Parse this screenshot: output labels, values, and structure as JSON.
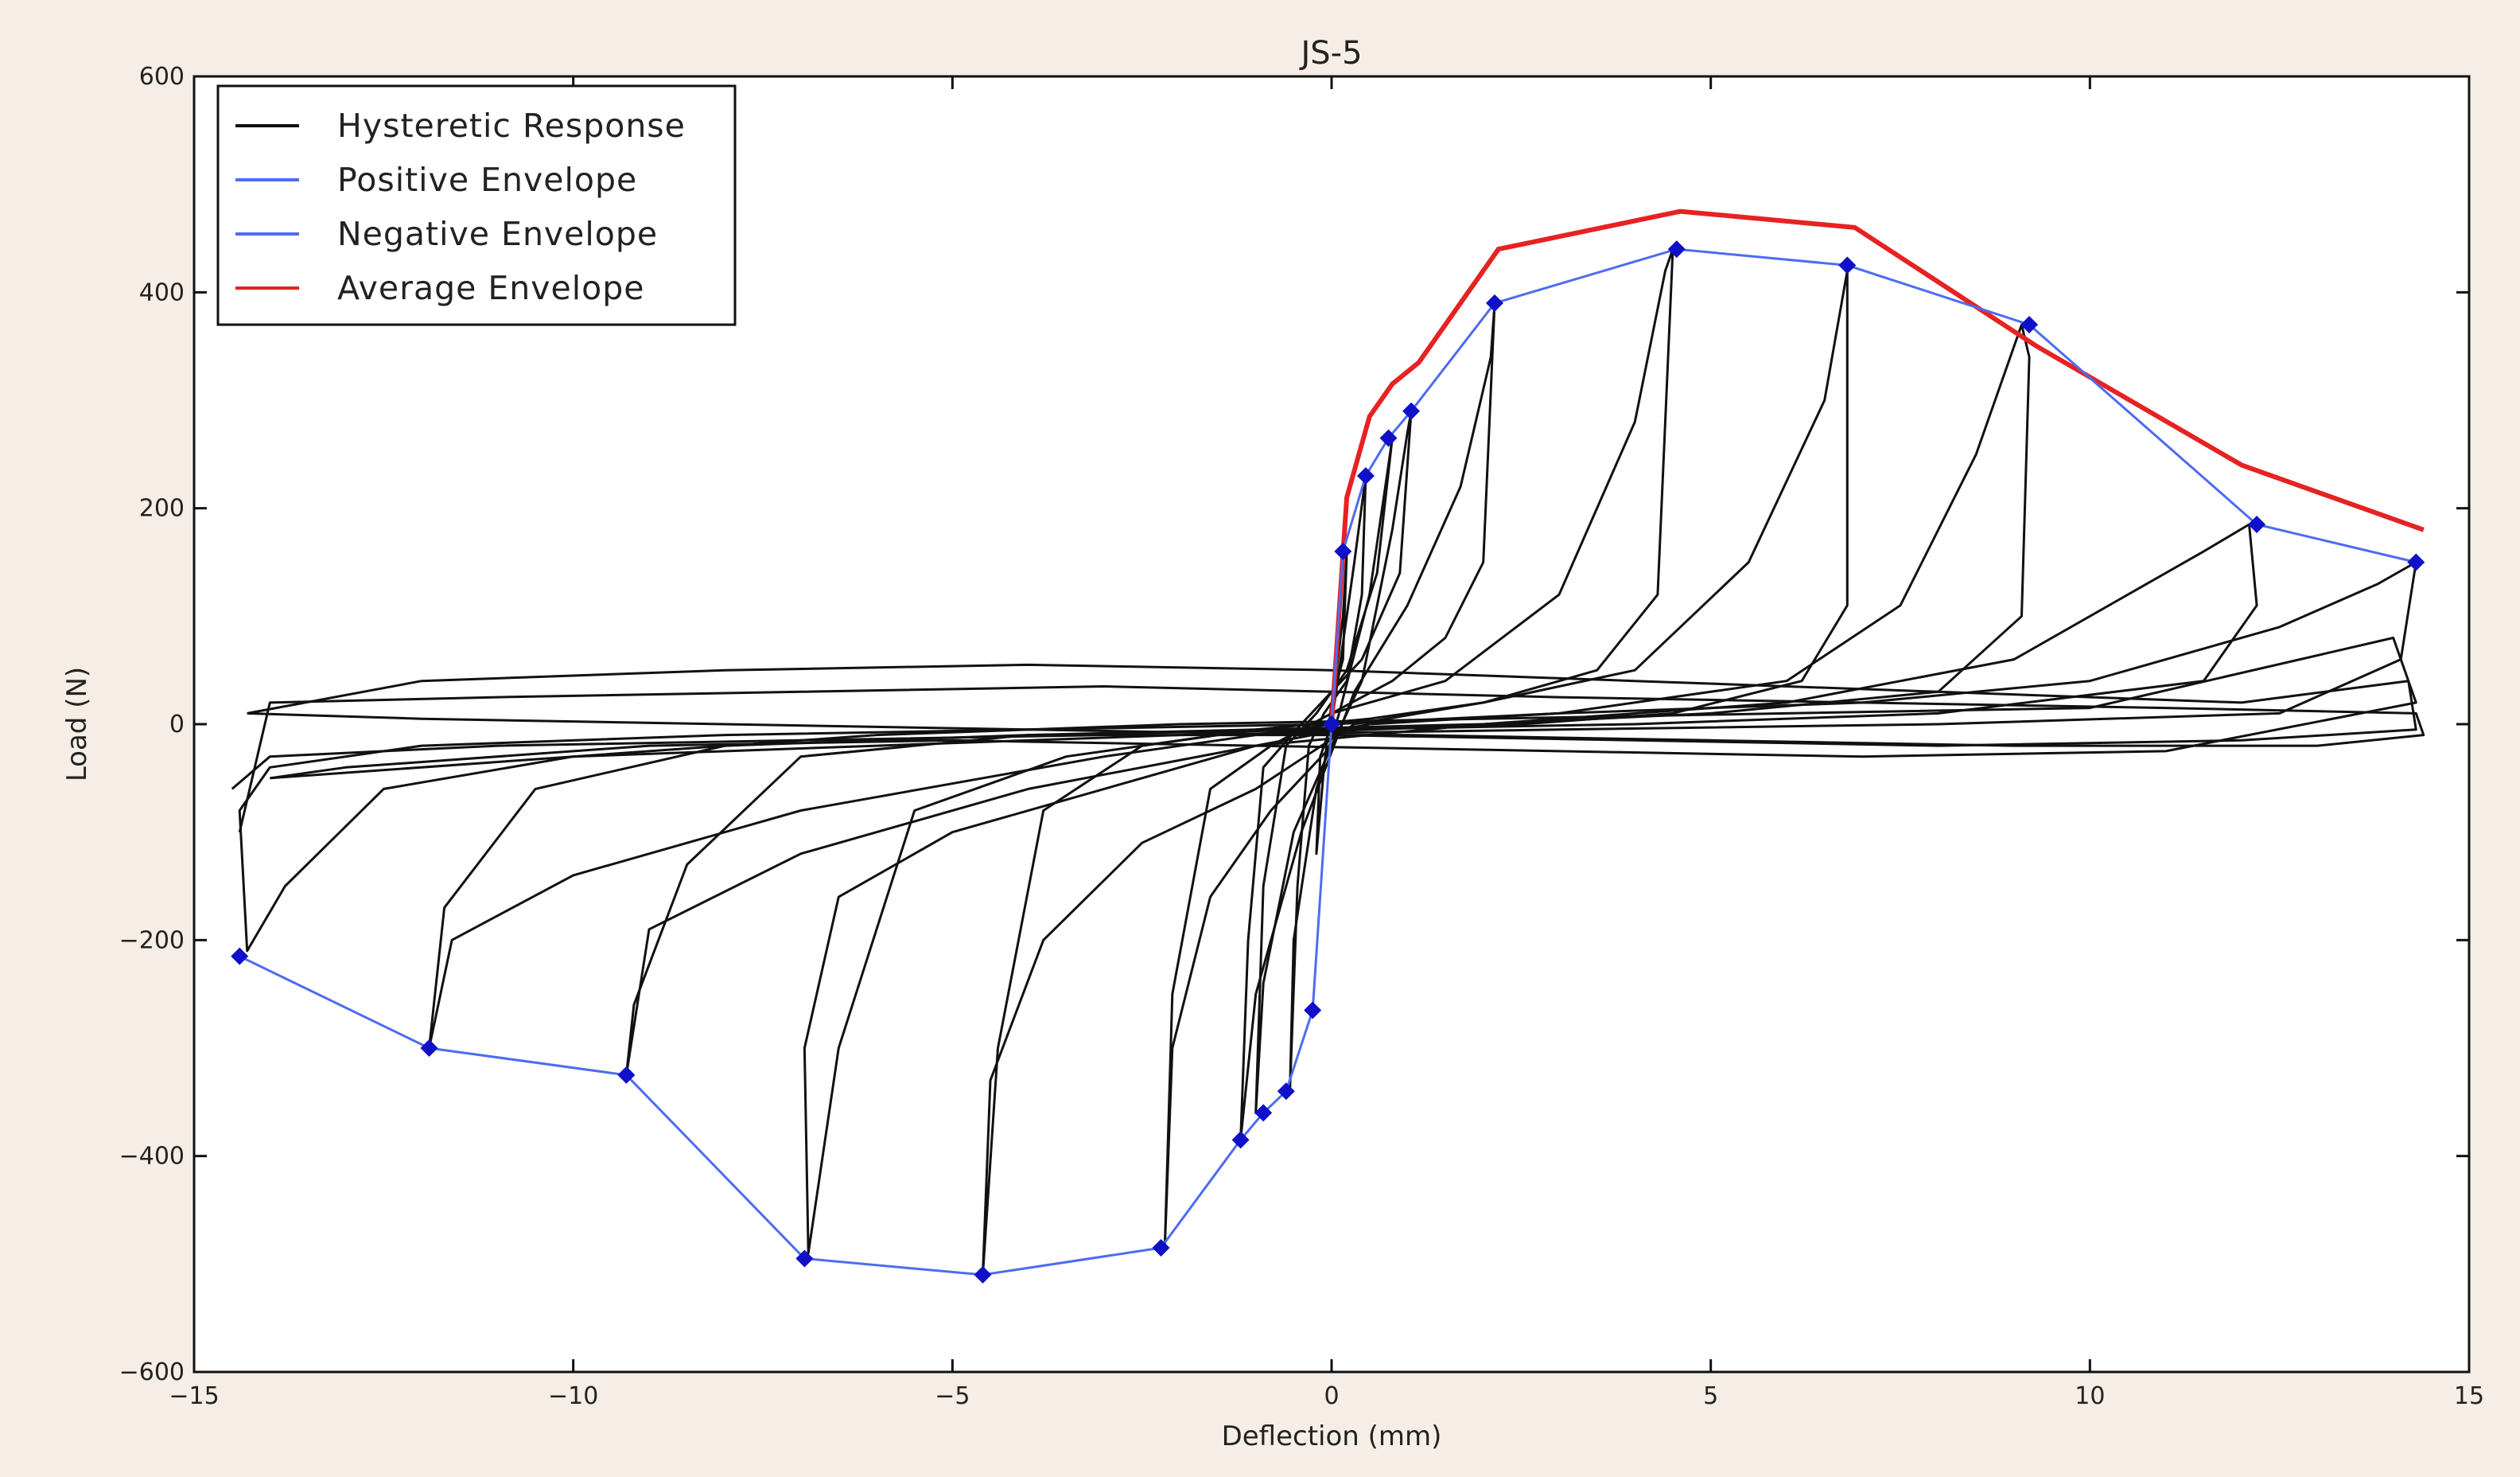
{
  "chart_data": {
    "type": "line",
    "title": "JS-5",
    "xlabel": "Deflection (mm)",
    "ylabel": "Load (N)",
    "xlim": [
      -15,
      15
    ],
    "ylim": [
      -600,
      600
    ],
    "xticks": [
      -15,
      -10,
      -5,
      0,
      5,
      10,
      15
    ],
    "yticks": [
      -600,
      -400,
      -200,
      0,
      200,
      400,
      600
    ],
    "xtick_labels": [
      "−15",
      "−10",
      "−5",
      "0",
      "5",
      "10",
      "15"
    ],
    "ytick_labels": [
      "−600",
      "−400",
      "−200",
      "0",
      "200",
      "400",
      "600"
    ],
    "grid": false,
    "legend_position": "top-left",
    "colors": {
      "hysteretic": "#111111",
      "positive": "#4d6cf0",
      "negative": "#4d6cf0",
      "average": "#e62222",
      "marker": "#1010c8"
    },
    "series": [
      {
        "name": "Hysteretic Response",
        "role": "hysteretic",
        "loops": [
          {
            "x": [
              0,
              0.05,
              0.15,
              0.2,
              0.15,
              0,
              -0.1,
              -0.2,
              -0.15,
              0
            ],
            "y": [
              0,
              40,
              100,
              160,
              60,
              20,
              -40,
              -120,
              -30,
              0
            ]
          },
          {
            "x": [
              0,
              0.1,
              0.3,
              0.45,
              0.4,
              0.2,
              -0.1,
              -0.3,
              -0.45,
              -0.55,
              -0.5,
              -0.2,
              0.1
            ],
            "y": [
              0,
              50,
              150,
              230,
              120,
              40,
              10,
              -20,
              -150,
              -340,
              -200,
              -60,
              10
            ]
          },
          {
            "x": [
              0.1,
              0.5,
              0.75,
              0.8,
              0.6,
              0.2,
              -0.2,
              -0.6,
              -0.9,
              -1.0,
              -0.9,
              -0.5,
              0,
              0.4
            ],
            "y": [
              10,
              120,
              240,
              265,
              140,
              50,
              10,
              -20,
              -150,
              -360,
              -240,
              -100,
              -20,
              40
            ]
          },
          {
            "x": [
              0.4,
              0.8,
              1.0,
              1.05,
              0.9,
              0.4,
              -0.4,
              -0.9,
              -1.1,
              -1.2,
              -1.0,
              -0.4,
              0.3
            ],
            "y": [
              40,
              180,
              270,
              290,
              140,
              60,
              0,
              -40,
              -200,
              -385,
              -250,
              -100,
              30
            ]
          },
          {
            "x": [
              0.3,
              1.0,
              1.7,
              2.1,
              2.15,
              2.0,
              1.5,
              0.8,
              0,
              -0.8,
              -1.6,
              -2.1,
              -2.2,
              -2.1,
              -1.6,
              -0.8,
              0
            ],
            "y": [
              30,
              110,
              220,
              340,
              390,
              150,
              80,
              40,
              10,
              -20,
              -60,
              -250,
              -485,
              -300,
              -160,
              -80,
              -20
            ]
          },
          {
            "x": [
              0,
              1.5,
              3.0,
              4.0,
              4.4,
              4.5,
              4.3,
              3.5,
              2.0,
              0.5,
              -1.0,
              -2.5,
              -3.8,
              -4.4,
              -4.6,
              -4.5,
              -3.8,
              -2.5,
              -1.0,
              0.3
            ],
            "y": [
              10,
              40,
              120,
              280,
              420,
              440,
              120,
              50,
              20,
              5,
              -5,
              -20,
              -80,
              -300,
              -510,
              -330,
              -200,
              -110,
              -60,
              0
            ]
          },
          {
            "x": [
              0.3,
              2.0,
              4.0,
              5.5,
              6.5,
              6.8,
              6.8,
              6.2,
              4.5,
              2.5,
              0.5,
              -1.5,
              -3.5,
              -5.5,
              -6.5,
              -6.9,
              -6.95,
              -6.5,
              -5.0,
              -3.0,
              -1.0,
              0.5
            ],
            "y": [
              0,
              20,
              50,
              150,
              300,
              420,
              110,
              40,
              10,
              0,
              -5,
              -10,
              -30,
              -80,
              -300,
              -490,
              -300,
              -160,
              -100,
              -60,
              -20,
              0
            ]
          },
          {
            "x": [
              0.5,
              3.0,
              6.0,
              7.5,
              8.5,
              9.1,
              9.2,
              9.1,
              8.0,
              5.0,
              2.0,
              -1.0,
              -4.0,
              -7.0,
              -8.5,
              -9.2,
              -9.3,
              -9.0,
              -7.0,
              -4.0,
              -1.0
            ],
            "y": [
              0,
              10,
              40,
              110,
              250,
              370,
              340,
              100,
              30,
              10,
              0,
              -5,
              -10,
              -30,
              -130,
              -260,
              -325,
              -190,
              -120,
              -60,
              -20
            ]
          },
          {
            "x": [
              -1.0,
              2.0,
              6.0,
              9.0,
              10.5,
              11.5,
              12.1,
              12.2,
              11.5,
              8.0,
              4.0,
              0,
              -4.0,
              -8.0,
              -10.5,
              -11.7,
              -11.9,
              -11.6,
              -10.0,
              -7.0,
              -3.0,
              0
            ],
            "y": [
              -20,
              0,
              20,
              60,
              120,
              160,
              185,
              110,
              40,
              10,
              0,
              -5,
              -10,
              -20,
              -60,
              -170,
              -300,
              -200,
              -140,
              -80,
              -30,
              0
            ]
          },
          {
            "x": [
              0,
              3.0,
              7.0,
              10.0,
              12.5,
              13.8,
              14.3,
              14.1,
              12.5,
              8.0,
              3.0,
              -2.0,
              -6.0,
              -10.0,
              -12.5,
              -13.8,
              -14.3,
              -14.4,
              -14.0,
              -12.0,
              -8.0,
              -4.0,
              0
            ],
            "y": [
              0,
              10,
              20,
              40,
              90,
              130,
              150,
              60,
              10,
              0,
              -5,
              -10,
              -20,
              -30,
              -60,
              -150,
              -210,
              -80,
              -40,
              -20,
              -10,
              -5,
              0
            ]
          },
          {
            "x": [
              -14.4,
              -14.0,
              -11.0,
              -7.0,
              -3.0,
              0,
              3.0,
              7.0,
              11.0,
              14.3,
              14.4,
              13.0,
              9.0,
              5.0,
              1.0,
              -3.0,
              -7.0,
              -11.0,
              -14.0,
              -14.5
            ],
            "y": [
              -100,
              20,
              25,
              30,
              35,
              30,
              25,
              20,
              15,
              10,
              -10,
              -20,
              -20,
              -15,
              -10,
              -10,
              -15,
              -20,
              -30,
              -60
            ]
          },
          {
            "x": [
              -14.3,
              -12.0,
              -8.0,
              -4.0,
              0,
              4.0,
              8.0,
              12.0,
              14.2,
              14.3,
              12.0,
              8.0,
              4.0,
              0,
              -4.0,
              -8.0,
              -12.0,
              -14.3
            ],
            "y": [
              10,
              40,
              50,
              55,
              50,
              40,
              30,
              20,
              40,
              -5,
              -15,
              -20,
              -15,
              -10,
              -5,
              0,
              5,
              10
            ]
          },
          {
            "x": [
              -14.0,
              -10.0,
              -6.0,
              -2.0,
              2.0,
              6.0,
              10.0,
              14.0,
              14.3,
              11.0,
              7.0,
              3.0,
              -1.0,
              -5.0,
              -9.0,
              -13.0,
              -14.0
            ],
            "y": [
              -50,
              -30,
              -10,
              0,
              5,
              10,
              15,
              80,
              20,
              -25,
              -30,
              -25,
              -20,
              -15,
              -20,
              -40,
              -50
            ]
          }
        ]
      },
      {
        "name": "Positive Envelope",
        "role": "positive",
        "x": [
          0,
          0.15,
          0.45,
          0.75,
          1.05,
          2.15,
          4.55,
          6.8,
          9.2,
          12.2,
          14.3
        ],
        "y": [
          0,
          160,
          230,
          265,
          290,
          390,
          440,
          425,
          370,
          185,
          150
        ]
      },
      {
        "name": "Negative Envelope",
        "role": "negative",
        "x": [
          0,
          -0.25,
          -0.6,
          -0.9,
          -1.2,
          -2.25,
          -4.6,
          -6.95,
          -9.3,
          -11.9,
          -14.4
        ],
        "y": [
          0,
          -265,
          -340,
          -360,
          -385,
          -485,
          -510,
          -495,
          -325,
          -300,
          -215
        ]
      },
      {
        "name": "Average Envelope",
        "role": "average",
        "x": [
          0,
          0.2,
          0.5,
          0.8,
          1.15,
          2.2,
          4.6,
          6.9,
          9.3,
          12.0,
          14.4
        ],
        "y": [
          0,
          210,
          285,
          315,
          335,
          440,
          475,
          460,
          350,
          240,
          180
        ]
      }
    ]
  }
}
